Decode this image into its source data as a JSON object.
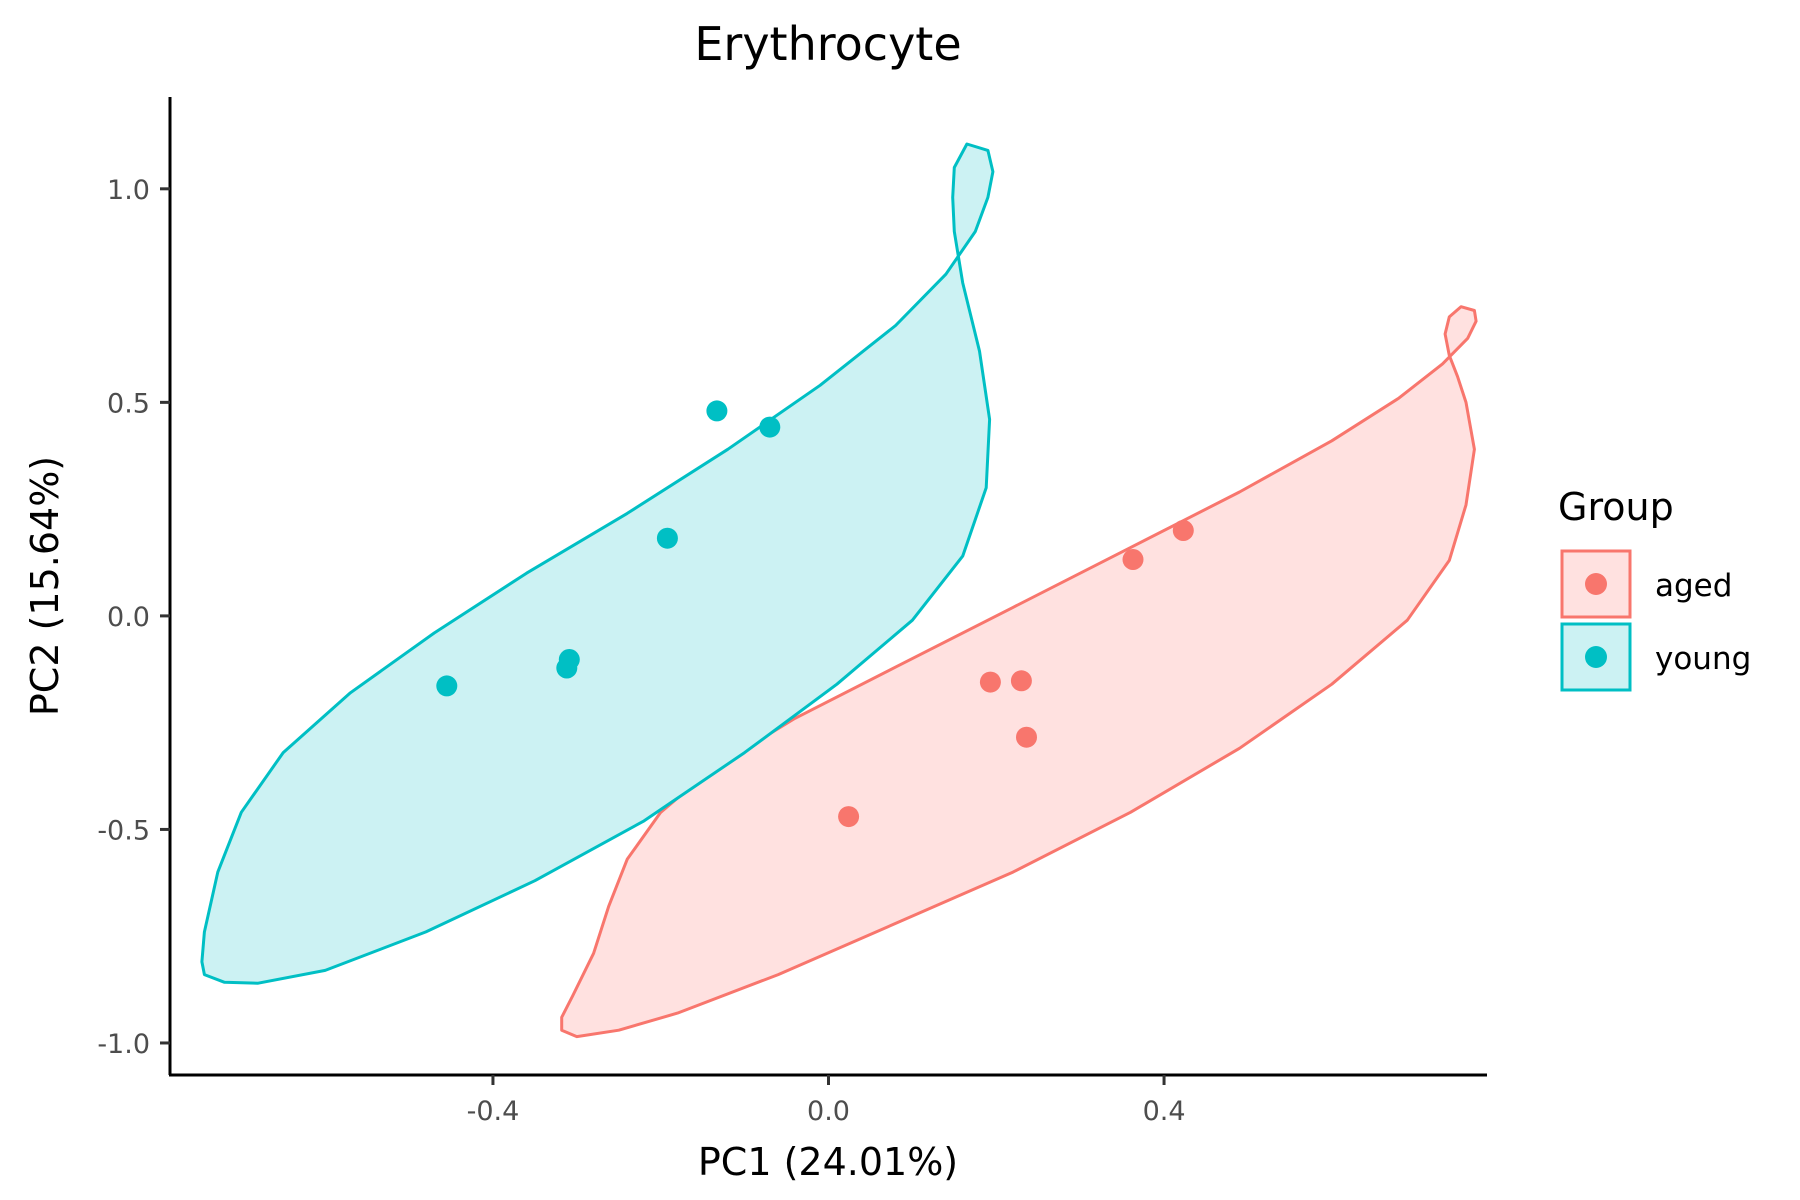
{
  "chart_data": {
    "type": "scatter",
    "title": "Erythrocyte",
    "xlabel": "PC1 (24.01%)",
    "ylabel": "PC2 (15.64%)",
    "xlim": [
      -0.785,
      0.785
    ],
    "ylim": [
      -1.075,
      1.215
    ],
    "x_ticks": [
      -0.4,
      0.0,
      0.4
    ],
    "x_tick_labels": [
      "-0.4",
      "0.0",
      "0.4"
    ],
    "y_ticks": [
      -1.0,
      -0.5,
      0.0,
      0.5,
      1.0
    ],
    "y_tick_labels": [
      "-1.0",
      "-0.5",
      "0.0",
      "0.5",
      "1.0"
    ],
    "grid": false,
    "legend": {
      "title": "Group",
      "placement": "right"
    },
    "series": [
      {
        "name": "aged",
        "color": "#F8766D",
        "fill": "#FFE1E0",
        "points": [
          {
            "x": 0.024,
            "y": -0.47
          },
          {
            "x": 0.193,
            "y": -0.155
          },
          {
            "x": 0.23,
            "y": -0.152
          },
          {
            "x": 0.236,
            "y": -0.284
          },
          {
            "x": 0.363,
            "y": 0.132
          },
          {
            "x": 0.423,
            "y": 0.2
          }
        ],
        "ellipse": [
          [
            0.754,
            0.724
          ],
          [
            0.77,
            0.715
          ],
          [
            0.772,
            0.69
          ],
          [
            0.762,
            0.65
          ],
          [
            0.732,
            0.59
          ],
          [
            0.68,
            0.51
          ],
          [
            0.6,
            0.41
          ],
          [
            0.49,
            0.29
          ],
          [
            0.36,
            0.16
          ],
          [
            0.22,
            0.02
          ],
          [
            0.08,
            -0.12
          ],
          [
            -0.04,
            -0.24
          ],
          [
            -0.14,
            -0.36
          ],
          [
            -0.2,
            -0.46
          ],
          [
            -0.24,
            -0.57
          ],
          [
            -0.262,
            -0.68
          ],
          [
            -0.28,
            -0.79
          ],
          [
            -0.305,
            -0.89
          ],
          [
            -0.318,
            -0.94
          ],
          [
            -0.318,
            -0.97
          ],
          [
            -0.3,
            -0.985
          ],
          [
            -0.25,
            -0.97
          ],
          [
            -0.18,
            -0.93
          ],
          [
            -0.06,
            -0.84
          ],
          [
            0.08,
            -0.72
          ],
          [
            0.22,
            -0.6
          ],
          [
            0.36,
            -0.46
          ],
          [
            0.49,
            -0.31
          ],
          [
            0.6,
            -0.16
          ],
          [
            0.69,
            -0.01
          ],
          [
            0.74,
            0.13
          ],
          [
            0.76,
            0.26
          ],
          [
            0.77,
            0.39
          ],
          [
            0.76,
            0.5
          ],
          [
            0.75,
            0.56
          ],
          [
            0.74,
            0.61
          ],
          [
            0.735,
            0.66
          ],
          [
            0.74,
            0.7
          ],
          [
            0.754,
            0.724
          ]
        ]
      },
      {
        "name": "young",
        "color": "#00BFC4",
        "fill": "#CCF2F3",
        "points": [
          {
            "x": -0.455,
            "y": -0.164
          },
          {
            "x": -0.309,
            "y": -0.102
          },
          {
            "x": -0.312,
            "y": -0.122
          },
          {
            "x": -0.192,
            "y": 0.182
          },
          {
            "x": -0.133,
            "y": 0.48
          },
          {
            "x": -0.07,
            "y": 0.442
          }
        ],
        "ellipse": [
          [
            0.165,
            1.105
          ],
          [
            0.19,
            1.09
          ],
          [
            0.196,
            1.04
          ],
          [
            0.19,
            0.98
          ],
          [
            0.175,
            0.9
          ],
          [
            0.14,
            0.8
          ],
          [
            0.08,
            0.68
          ],
          [
            -0.01,
            0.54
          ],
          [
            -0.12,
            0.39
          ],
          [
            -0.24,
            0.24
          ],
          [
            -0.36,
            0.1
          ],
          [
            -0.47,
            -0.04
          ],
          [
            -0.57,
            -0.18
          ],
          [
            -0.65,
            -0.32
          ],
          [
            -0.7,
            -0.46
          ],
          [
            -0.728,
            -0.6
          ],
          [
            -0.744,
            -0.74
          ],
          [
            -0.747,
            -0.81
          ],
          [
            -0.744,
            -0.84
          ],
          [
            -0.72,
            -0.858
          ],
          [
            -0.68,
            -0.86
          ],
          [
            -0.6,
            -0.83
          ],
          [
            -0.48,
            -0.74
          ],
          [
            -0.35,
            -0.62
          ],
          [
            -0.22,
            -0.48
          ],
          [
            -0.1,
            -0.32
          ],
          [
            0.01,
            -0.16
          ],
          [
            0.1,
            -0.01
          ],
          [
            0.16,
            0.14
          ],
          [
            0.188,
            0.3
          ],
          [
            0.192,
            0.46
          ],
          [
            0.18,
            0.62
          ],
          [
            0.16,
            0.78
          ],
          [
            0.15,
            0.9
          ],
          [
            0.148,
            0.98
          ],
          [
            0.15,
            1.05
          ],
          [
            0.165,
            1.105
          ]
        ]
      }
    ]
  }
}
